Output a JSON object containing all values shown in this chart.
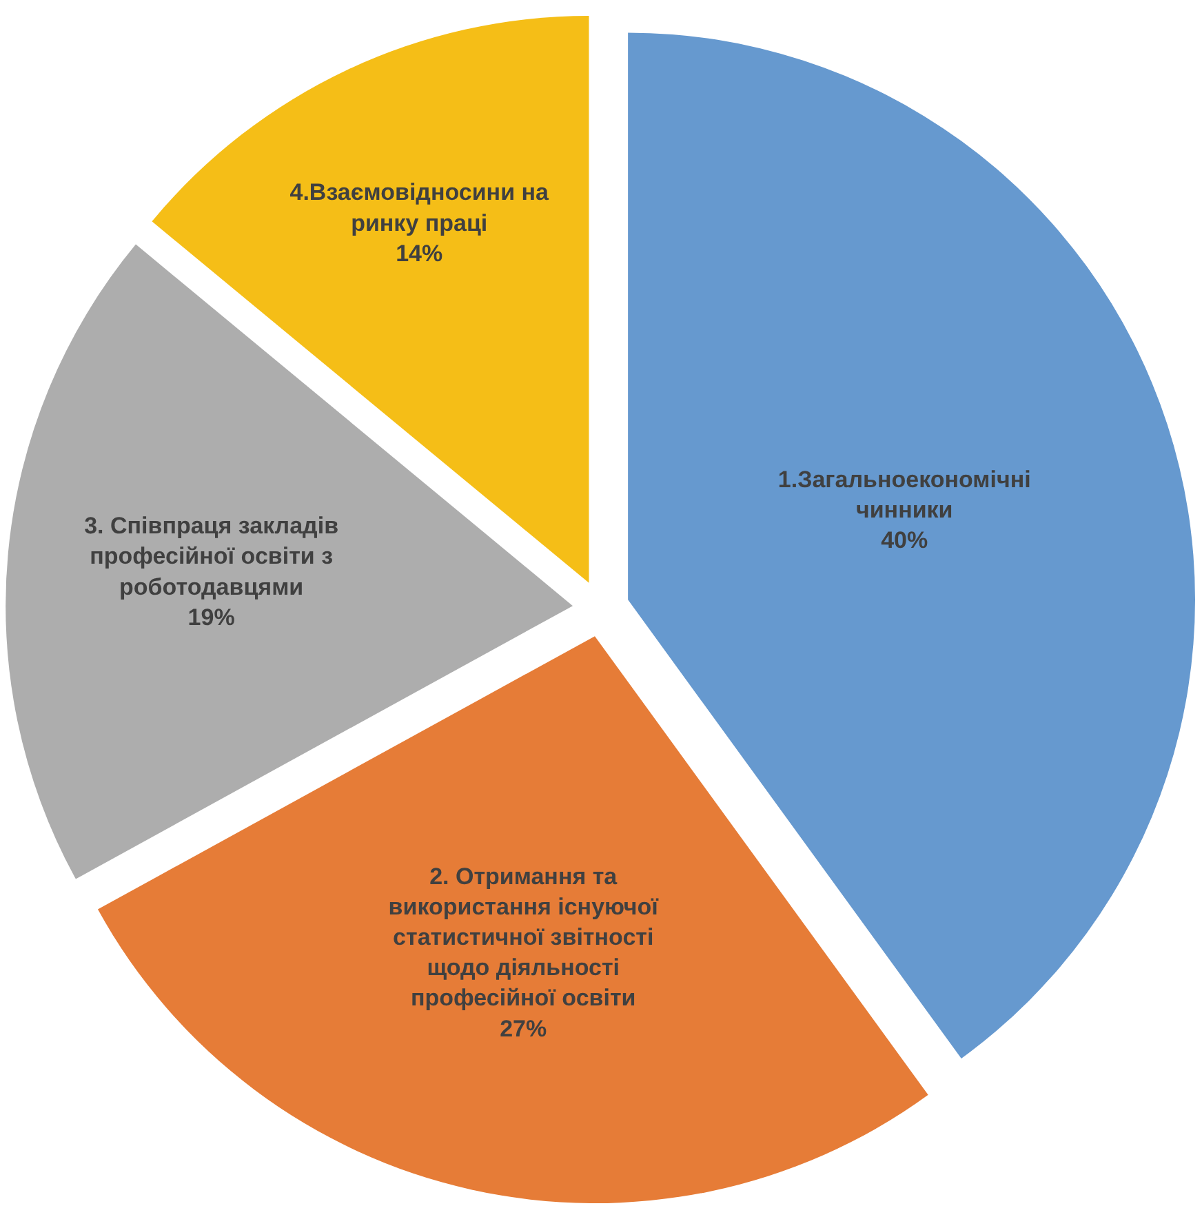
{
  "chart_data": {
    "type": "pie",
    "categories": [
      "1.Загальноекономічні чинники",
      "2. Отримання та використання існуючої статистичної звітності щодо діяльності професійної освіти",
      "3. Співпраця закладів професійної освіти з роботодавцями",
      "4.Взаємовідносини на ринку праці"
    ],
    "values": [
      40,
      27,
      19,
      14
    ],
    "colors": [
      "#6699cf",
      "#e67c37",
      "#adadad",
      "#f5be17"
    ],
    "value_labels": [
      "40%",
      "27%",
      "19%",
      "14%"
    ],
    "legend": false
  }
}
